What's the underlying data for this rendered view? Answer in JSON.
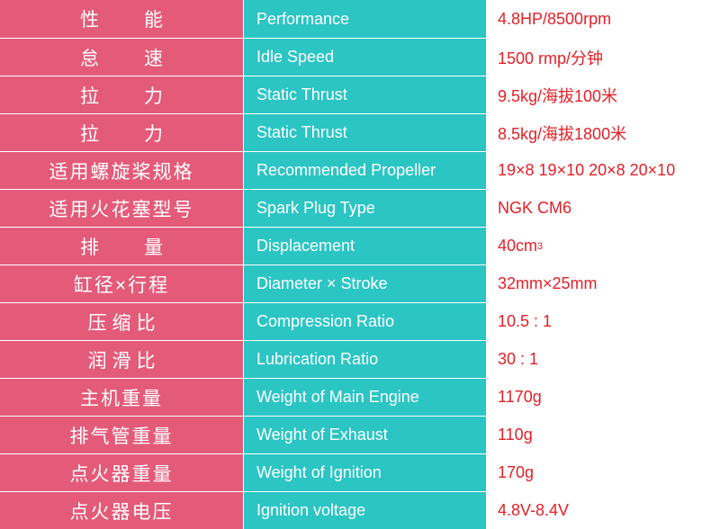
{
  "colors": {
    "pink": "#e45b7a",
    "teal": "#2bc5c4",
    "red_text": "#e32027",
    "white": "#ffffff"
  },
  "rows": [
    {
      "cn": "性　　能",
      "en": "Performance",
      "val": "4.8HP/8500rpm",
      "cn_spacing": "spaced-wide"
    },
    {
      "cn": "怠　　速",
      "en": "Idle Speed",
      "val": "1500 rmp/分钟",
      "cn_spacing": "spaced-wide"
    },
    {
      "cn": "拉　　力",
      "en": "Static Thrust",
      "val": "9.5kg/海拔100米",
      "cn_spacing": "spaced-wide"
    },
    {
      "cn": "拉　　力",
      "en": "Static Thrust",
      "val": "8.5kg/海拔1800米",
      "cn_spacing": "spaced-wide"
    },
    {
      "cn": "适用螺旋桨规格",
      "en": "Recommended Propeller",
      "val": "19×8 19×10 20×8 20×10",
      "cn_spacing": ""
    },
    {
      "cn": "适用火花塞型号",
      "en": "Spark Plug Type",
      "val": "NGK CM6",
      "cn_spacing": ""
    },
    {
      "cn": "排　　量",
      "en": "Displacement",
      "val": "40cm³",
      "cn_spacing": "spaced-wide"
    },
    {
      "cn": "缸径×行程",
      "en": "Diameter × Stroke",
      "val": "32mm×25mm",
      "cn_spacing": ""
    },
    {
      "cn": "压缩比",
      "en": "Compression Ratio",
      "val": "10.5 : 1",
      "cn_spacing": "spaced"
    },
    {
      "cn": "润滑比",
      "en": "Lubrication Ratio",
      "val": "30 : 1",
      "cn_spacing": "spaced"
    },
    {
      "cn": "主机重量",
      "en": "Weight of Main Engine",
      "val": "1170g",
      "cn_spacing": ""
    },
    {
      "cn": "排气管重量",
      "en": "Weight of Exhaust",
      "val": "110g",
      "cn_spacing": ""
    },
    {
      "cn": "点火器重量",
      "en": "Weight of Ignition",
      "val": "170g",
      "cn_spacing": ""
    },
    {
      "cn": "点火器电压",
      "en": "Ignition voltage",
      "val": "4.8V-8.4V",
      "cn_spacing": ""
    }
  ]
}
